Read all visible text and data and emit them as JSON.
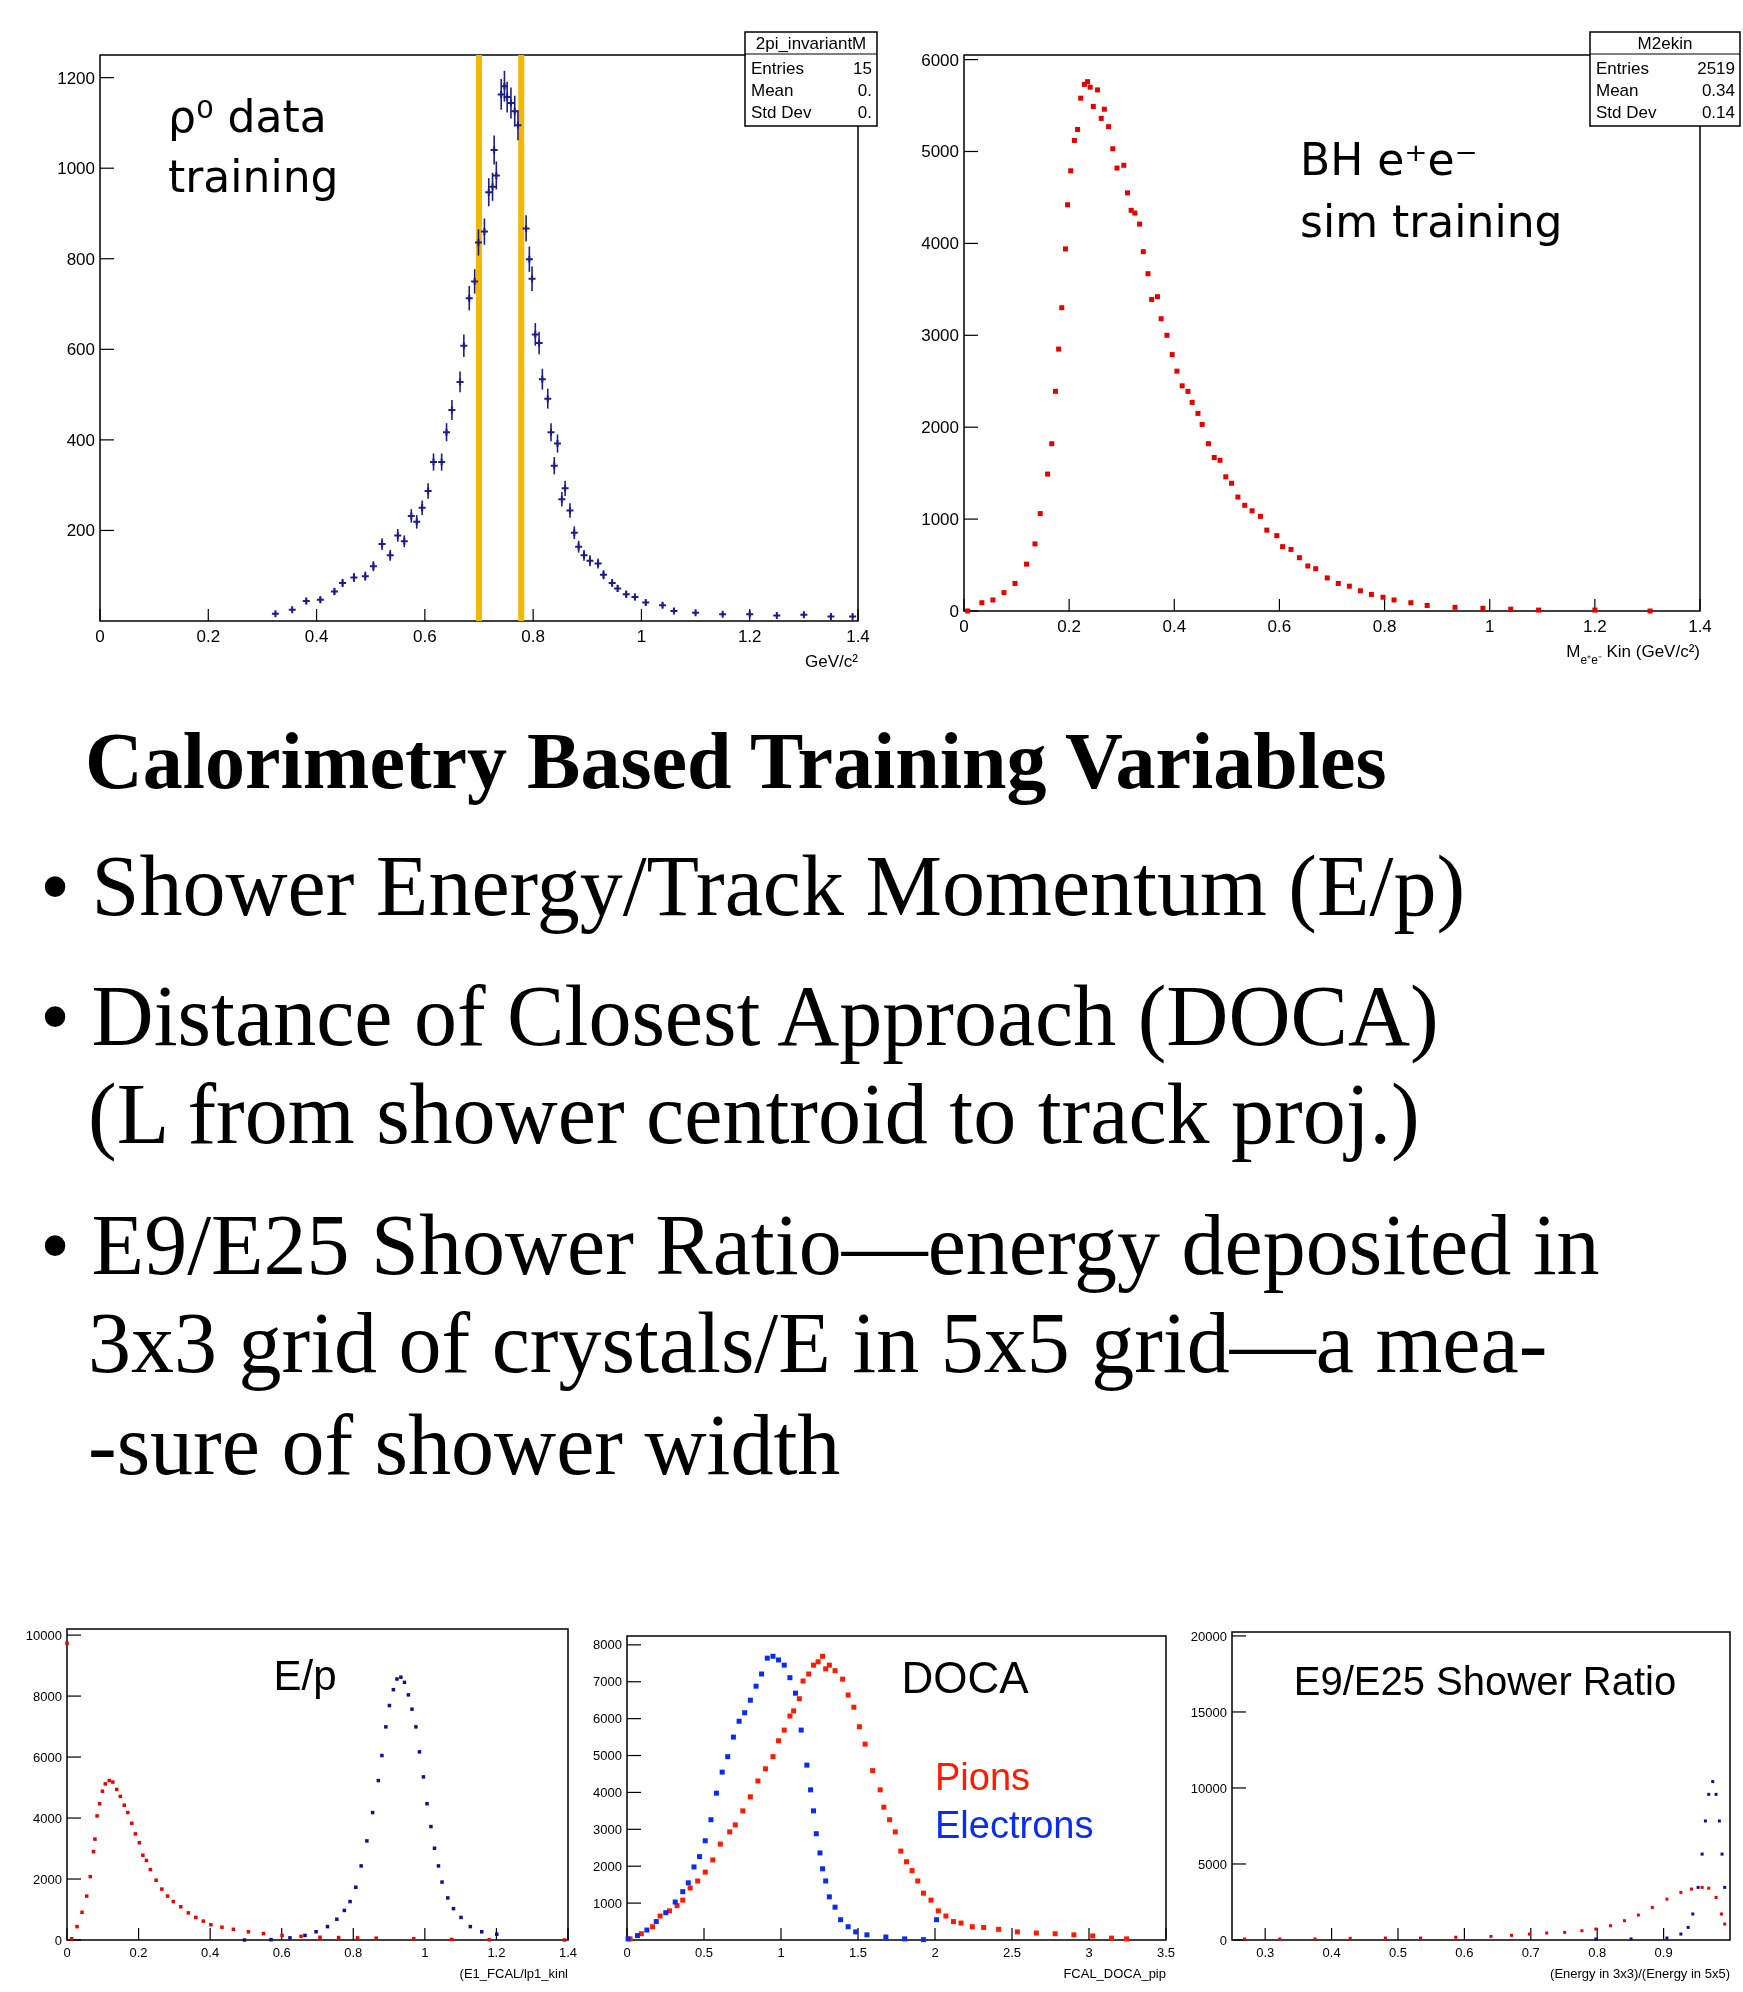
{
  "chart_data": [
    {
      "type": "scatter",
      "title": "ρ⁰ data\ntraining",
      "xlabel": "GeV/c²",
      "xlim": [
        0,
        1.4
      ],
      "xticks": [
        0,
        0.2,
        0.4,
        0.6,
        0.8,
        1,
        1.2,
        1.4
      ],
      "ylim": [
        0,
        1250
      ],
      "yticks": [
        200,
        400,
        600,
        800,
        1000,
        1200
      ],
      "marker": "cross",
      "series": [
        {
          "color": "#1c1c8a",
          "x": [
            0.324,
            0.355,
            0.381,
            0.407,
            0.433,
            0.448,
            0.469,
            0.49,
            0.505,
            0.521,
            0.536,
            0.55,
            0.562,
            0.575,
            0.585,
            0.595,
            0.606,
            0.616,
            0.631,
            0.64,
            0.65,
            0.665,
            0.672,
            0.682,
            0.692,
            0.699,
            0.71,
            0.718,
            0.725,
            0.728,
            0.732,
            0.741,
            0.747,
            0.752,
            0.759,
            0.766,
            0.772,
            0.787,
            0.793,
            0.798,
            0.804,
            0.811,
            0.817,
            0.827,
            0.833,
            0.839,
            0.845,
            0.853,
            0.859,
            0.868,
            0.876,
            0.884,
            0.894,
            0.905,
            0.92,
            0.93,
            0.946,
            0.956,
            0.972,
            0.988,
            1.008,
            1.039,
            1.06,
            1.1,
            1.15,
            1.2,
            1.25,
            1.3,
            1.35,
            1.39
          ],
          "values": [
            16,
            25,
            44,
            47,
            65,
            84,
            96,
            99,
            121,
            170,
            145,
            189,
            176,
            232,
            219,
            250,
            287,
            351,
            351,
            417,
            466,
            528,
            608,
            713,
            750,
            836,
            860,
            947,
            959,
            1040,
            984,
            1163,
            1181,
            1157,
            1144,
            1126,
            1095,
            867,
            799,
            756,
            633,
            614,
            534,
            491,
            417,
            343,
            392,
            269,
            293,
            244,
            195,
            164,
            145,
            133,
            127,
            102,
            84,
            72,
            59,
            53,
            41,
            35,
            22,
            18,
            15,
            15,
            12,
            14,
            10,
            10
          ],
          "errors": [
            4,
            5,
            7,
            7,
            8,
            9,
            10,
            10,
            11,
            13,
            12,
            14,
            13,
            15,
            15,
            16,
            17,
            19,
            19,
            20,
            22,
            23,
            25,
            27,
            27,
            29,
            29,
            31,
            31,
            32,
            31,
            34,
            34,
            34,
            34,
            34,
            33,
            29,
            28,
            27,
            25,
            25,
            23,
            22,
            20,
            19,
            20,
            16,
            17,
            16,
            14,
            13,
            12,
            12,
            11,
            10,
            9,
            8,
            8,
            7,
            6,
            6,
            5,
            4,
            4,
            4,
            3,
            4,
            3,
            3
          ]
        }
      ],
      "ref_lines": [
        {
          "axis": "x",
          "value": 0.7,
          "color": "#f5b800"
        },
        {
          "axis": "x",
          "value": 0.778,
          "color": "#f5b800"
        }
      ],
      "annotations": [
        "2pi_invariantM",
        "Entries 15",
        "Mean 0.",
        "Std Dev 0."
      ]
    },
    {
      "type": "scatter",
      "title": "BH e⁺e⁻\nsim training",
      "xlabel": "M$_{e⁺e⁻}$ Kin (GeV/c²)",
      "xlim": [
        0,
        1.4
      ],
      "xticks": [
        0,
        0.2,
        0.4,
        0.6,
        0.8,
        1,
        1.2,
        1.4
      ],
      "ylim": [
        0,
        6050
      ],
      "yticks": [
        0,
        1000,
        2000,
        3000,
        4000,
        5000,
        6000
      ],
      "marker": "square",
      "series": [
        {
          "color": "#e60000",
          "x": [
            0.007,
            0.034,
            0.055,
            0.076,
            0.097,
            0.119,
            0.135,
            0.145,
            0.159,
            0.167,
            0.174,
            0.18,
            0.186,
            0.193,
            0.197,
            0.203,
            0.21,
            0.216,
            0.222,
            0.229,
            0.235,
            0.24,
            0.246,
            0.254,
            0.261,
            0.267,
            0.275,
            0.283,
            0.291,
            0.304,
            0.311,
            0.318,
            0.325,
            0.334,
            0.341,
            0.35,
            0.357,
            0.368,
            0.375,
            0.386,
            0.396,
            0.405,
            0.415,
            0.426,
            0.434,
            0.445,
            0.453,
            0.465,
            0.476,
            0.487,
            0.498,
            0.509,
            0.521,
            0.534,
            0.548,
            0.564,
            0.576,
            0.595,
            0.606,
            0.622,
            0.638,
            0.654,
            0.669,
            0.691,
            0.712,
            0.733,
            0.754,
            0.775,
            0.797,
            0.818,
            0.85,
            0.881,
            0.934,
            0.987,
            1.04,
            1.093,
            1.2,
            1.305
          ],
          "values": [
            0,
            90,
            120,
            200,
            300,
            510,
            730,
            1060,
            1490,
            1820,
            2390,
            2850,
            3300,
            3940,
            4420,
            4790,
            5120,
            5240,
            5580,
            5730,
            5760,
            5700,
            5490,
            5670,
            5360,
            5460,
            5270,
            5030,
            4820,
            4850,
            4550,
            4360,
            4330,
            4210,
            3910,
            3670,
            3390,
            3420,
            3180,
            3000,
            2790,
            2610,
            2450,
            2390,
            2270,
            2150,
            2030,
            1820,
            1670,
            1640,
            1460,
            1390,
            1240,
            1150,
            1090,
            1030,
            880,
            820,
            700,
            670,
            580,
            490,
            460,
            360,
            300,
            270,
            220,
            180,
            150,
            120,
            90,
            60,
            40,
            30,
            20,
            10,
            10,
            0
          ]
        }
      ],
      "annotations": [
        "M2ekin",
        "Entries 2519",
        "Mean 0.34",
        "Std Dev 0.14"
      ]
    },
    {
      "type": "other",
      "title": "Calorimetry Based Training Variables",
      "annotations": [
        "• Shower Energy/Track Momentum (E/p)",
        "• Distance of Closest Approach (DOCA)",
        "(L from shower centroid to track proj.)",
        "• E9/E25 Shower Ratio—energy deposited in",
        "3x3 grid of crystals/E in 5x5 grid—a mea-",
        "-sure of shower width"
      ]
    },
    {
      "type": "scatter",
      "title": "E/p",
      "xlabel": "(E1_FCAL/lp1_kinl",
      "xlim": [
        0,
        1.4
      ],
      "xticks": [
        0,
        0.2,
        0.4,
        0.6,
        0.8,
        1,
        1.2,
        1.4
      ],
      "ylim": [
        0,
        10200
      ],
      "yticks": [
        0,
        2000,
        4000,
        6000,
        8000,
        10000
      ],
      "marker": "square",
      "series": [
        {
          "color": "#ee0000",
          "x": [
            0,
            0.013,
            0.028,
            0.042,
            0.055,
            0.065,
            0.074,
            0.078,
            0.084,
            0.091,
            0.099,
            0.107,
            0.118,
            0.128,
            0.139,
            0.149,
            0.16,
            0.17,
            0.181,
            0.191,
            0.202,
            0.212,
            0.222,
            0.233,
            0.249,
            0.265,
            0.281,
            0.297,
            0.318,
            0.339,
            0.36,
            0.381,
            0.402,
            0.433,
            0.465,
            0.507,
            0.549,
            0.601,
            0.654,
            0.707,
            0.759,
            0.812,
            0.864,
            0.969,
            1.075,
            1.18,
            1.39
          ],
          "values": [
            9730,
            40,
            440,
            910,
            1440,
            2080,
            2900,
            3310,
            4070,
            4470,
            4880,
            5120,
            5230,
            5180,
            4940,
            4710,
            4420,
            4180,
            3830,
            3480,
            3190,
            2780,
            2610,
            2310,
            1960,
            1670,
            1440,
            1260,
            1090,
            890,
            740,
            620,
            500,
            420,
            350,
            270,
            210,
            150,
            120,
            90,
            80,
            70,
            60,
            40,
            20,
            10,
            0
          ]
        },
        {
          "color": "#10108f",
          "x": [
            0.496,
            0.57,
            0.623,
            0.665,
            0.696,
            0.728,
            0.754,
            0.775,
            0.791,
            0.807,
            0.822,
            0.838,
            0.854,
            0.87,
            0.88,
            0.891,
            0.901,
            0.912,
            0.922,
            0.933,
            0.943,
            0.954,
            0.964,
            0.975,
            0.985,
            0.996,
            1.006,
            1.017,
            1.027,
            1.038,
            1.048,
            1.064,
            1.08,
            1.101,
            1.127,
            1.159,
            1.201
          ],
          "values": [
            0,
            10,
            70,
            150,
            270,
            440,
            680,
            970,
            1260,
            1730,
            2430,
            3250,
            4180,
            5230,
            6050,
            6990,
            7690,
            8210,
            8560,
            8620,
            8450,
            8040,
            7570,
            6990,
            6170,
            5350,
            4470,
            3720,
            3010,
            2430,
            1900,
            1380,
            1030,
            740,
            440,
            270,
            190
          ]
        }
      ]
    },
    {
      "type": "scatter",
      "title": "DOCA",
      "xlabel": "FCAL_DOCA_pip",
      "xlim": [
        0,
        3.5
      ],
      "xticks": [
        0,
        0.5,
        1,
        1.5,
        2,
        2.5,
        3,
        3.5
      ],
      "ylim": [
        0,
        8240
      ],
      "yticks": [
        1000,
        2000,
        3000,
        4000,
        5000,
        6000,
        7000,
        8000
      ],
      "marker": "square",
      "legend": "right",
      "series": [
        {
          "name": "Pions",
          "color": "#ff1a00",
          "x": [
            0.02,
            0.093,
            0.166,
            0.215,
            0.276,
            0.325,
            0.362,
            0.41,
            0.459,
            0.508,
            0.557,
            0.606,
            0.667,
            0.703,
            0.752,
            0.801,
            0.85,
            0.899,
            0.948,
            0.984,
            1.021,
            1.058,
            1.082,
            1.119,
            1.143,
            1.18,
            1.211,
            1.241,
            1.27,
            1.29,
            1.314,
            1.351,
            1.4,
            1.436,
            1.473,
            1.509,
            1.546,
            1.595,
            1.644,
            1.668,
            1.705,
            1.742,
            1.778,
            1.815,
            1.851,
            1.888,
            1.925,
            1.974,
            2.022,
            2.071,
            2.12,
            2.169,
            2.242,
            2.316,
            2.413,
            2.535,
            2.658,
            2.78,
            2.902,
            3.024,
            3.146,
            3.244
          ],
          "values": [
            30,
            170,
            360,
            650,
            790,
            930,
            1080,
            1410,
            1600,
            1840,
            2170,
            2600,
            2930,
            3120,
            3500,
            3880,
            4310,
            4640,
            4970,
            5400,
            5690,
            6070,
            6210,
            6540,
            7020,
            7210,
            7450,
            7540,
            7690,
            7350,
            7450,
            7300,
            7070,
            6640,
            6310,
            5780,
            5310,
            4590,
            4070,
            3600,
            3260,
            2930,
            2410,
            2120,
            1880,
            1600,
            1270,
            1080,
            790,
            650,
            500,
            460,
            360,
            340,
            290,
            220,
            190,
            170,
            140,
            110,
            50,
            30
          ]
        },
        {
          "name": "Electrons",
          "color": "#0a2cf0",
          "x": [
            0.007,
            0.068,
            0.129,
            0.19,
            0.252,
            0.313,
            0.362,
            0.398,
            0.435,
            0.471,
            0.508,
            0.545,
            0.581,
            0.618,
            0.654,
            0.691,
            0.728,
            0.764,
            0.801,
            0.838,
            0.874,
            0.911,
            0.948,
            0.984,
            1.021,
            1.058,
            1.094,
            1.131,
            1.168,
            1.192,
            1.211,
            1.229,
            1.253,
            1.27,
            1.29,
            1.314,
            1.351,
            1.387,
            1.436,
            1.485,
            1.558,
            1.681,
            1.803,
            1.925,
            2.01
          ],
          "values": [
            30,
            120,
            270,
            500,
            740,
            1030,
            1310,
            1550,
            1980,
            2260,
            2690,
            3260,
            3980,
            4550,
            4970,
            5500,
            5930,
            6160,
            6500,
            6880,
            7210,
            7640,
            7690,
            7590,
            7450,
            7110,
            6690,
            5690,
            4740,
            4070,
            3500,
            2880,
            2360,
            1930,
            1600,
            1170,
            890,
            550,
            360,
            220,
            140,
            80,
            30,
            10,
            550
          ]
        }
      ]
    },
    {
      "type": "scatter",
      "title": "E9/E25 Shower Ratio",
      "xlabel": "(Energy in 3x3)/(Energy in 5x5)",
      "xlim": [
        0.25,
        1.0
      ],
      "xticks": [
        0.3,
        0.4,
        0.5,
        0.6,
        0.7,
        0.8,
        0.9
      ],
      "ylim": [
        0,
        20260
      ],
      "yticks": [
        0,
        5000,
        10000,
        15000,
        20000
      ],
      "marker": "square",
      "series": [
        {
          "color": "#ee0000",
          "x": [
            0.269,
            0.322,
            0.375,
            0.428,
            0.481,
            0.534,
            0.587,
            0.64,
            0.671,
            0.698,
            0.724,
            0.751,
            0.777,
            0.798,
            0.82,
            0.841,
            0.862,
            0.883,
            0.905,
            0.926,
            0.942,
            0.958,
            0.968,
            0.979,
            0.987,
            0.992
          ],
          "values": [
            70,
            70,
            70,
            110,
            130,
            130,
            180,
            240,
            310,
            390,
            460,
            500,
            610,
            720,
            940,
            1270,
            1640,
            2140,
            2690,
            3130,
            3350,
            3460,
            3410,
            2800,
            1710,
            1050
          ]
        },
        {
          "color": "#10108f",
          "x": [
            0.798,
            0.851,
            0.905,
            0.926,
            0.937,
            0.944,
            0.952,
            0.958,
            0.963,
            0.968,
            0.974,
            0.979,
            0.984,
            0.988,
            0.992
          ],
          "values": [
            70,
            70,
            130,
            390,
            830,
            1710,
            3460,
            5650,
            7830,
            9580,
            10420,
            9580,
            7830,
            5650,
            3460
          ]
        }
      ]
    }
  ]
}
